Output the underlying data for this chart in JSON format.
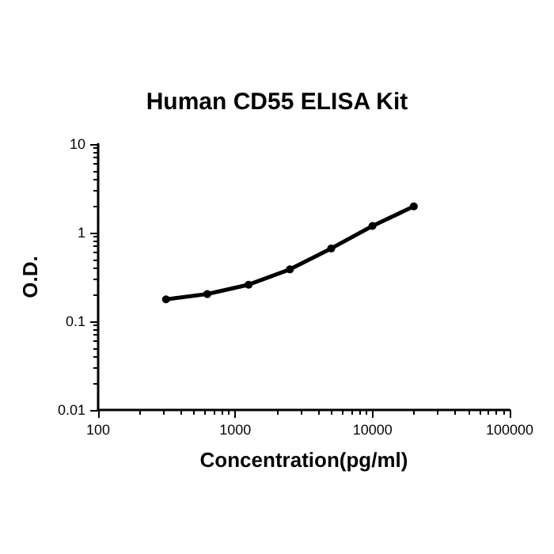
{
  "chart_data": {
    "type": "line",
    "title": "Human CD55 ELISA Kit",
    "xlabel": "Concentration(pg/ml)",
    "ylabel": "O.D.",
    "x": [
      312.5,
      625,
      1250,
      2500,
      5000,
      10000,
      20000
    ],
    "series": [
      {
        "color": "#000000",
        "values": [
          0.177,
          0.203,
          0.259,
          0.386,
          0.664,
          1.19,
          1.98
        ]
      }
    ],
    "log": "xy",
    "xlim": [
      100,
      100000
    ],
    "xticks": [
      100,
      1000,
      10000,
      100000
    ],
    "ylim": [
      0.01,
      10
    ],
    "yticks": [
      0.01,
      0.1,
      1,
      10
    ],
    "marker": "circle",
    "line_style": "solid"
  }
}
